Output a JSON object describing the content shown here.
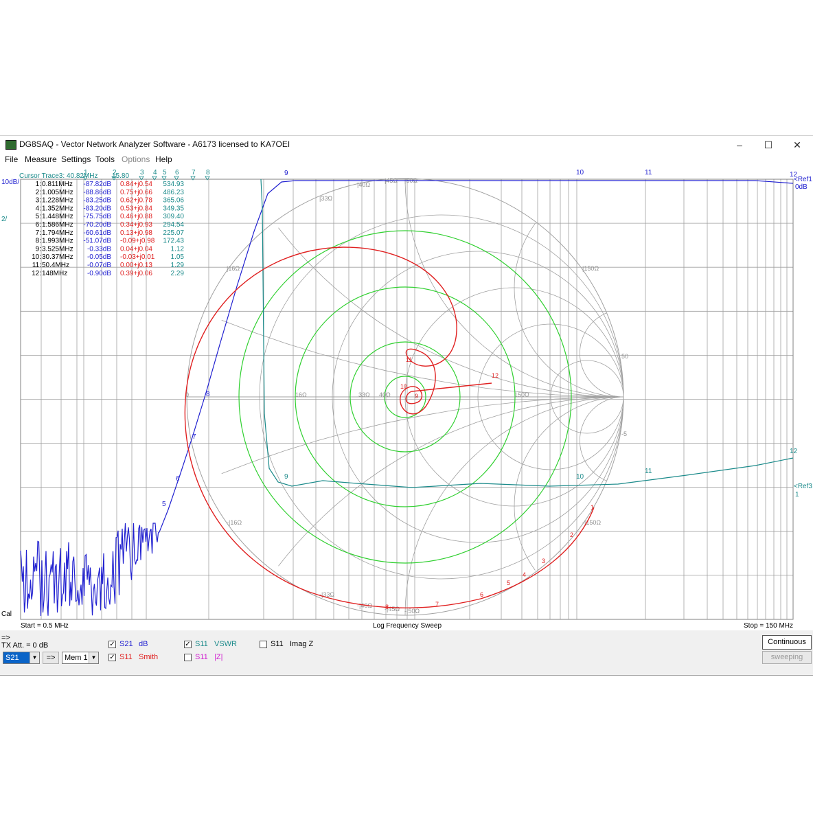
{
  "window": {
    "title": "DG8SAQ  -  Vector Network Analyzer Software  -  A6173 licensed to KA7OEI",
    "minimize": "–",
    "maximize": "☐",
    "close": "✕"
  },
  "menu": [
    {
      "label": "File",
      "disabled": false
    },
    {
      "label": "Measure",
      "disabled": false
    },
    {
      "label": "Settings",
      "disabled": false
    },
    {
      "label": "Tools",
      "disabled": false
    },
    {
      "label": "Options",
      "disabled": true
    },
    {
      "label": "Help",
      "disabled": false
    }
  ],
  "plot": {
    "left_scale_top": "10dB/",
    "left_scale_second": "2/",
    "left_bottom": "Cal",
    "cursor_header": "Cursor Trace3:  40.82MHz",
    "cursor_header_value": "15.80",
    "ref1_label": "<Ref1",
    "ref1_value": "0dB",
    "ref3_label": "<Ref3",
    "ref3_value": "1",
    "start": "Start = 0.5 MHz",
    "sweep_mode": "Log Frequency Sweep",
    "stop": "Stop = 150 MHz",
    "marker_numbers_top": [
      "1",
      "2",
      "3",
      "4",
      "5",
      "6",
      "7",
      "8"
    ],
    "markers": [
      {
        "n": "1:",
        "freq": "0.811MHz",
        "s21": "-87.82dB",
        "s11": "0.84+j0.54",
        "vswr": "534.93"
      },
      {
        "n": "2:",
        "freq": "1.005MHz",
        "s21": "-88.86dB",
        "s11": "0.75+j0.66",
        "vswr": "486.23"
      },
      {
        "n": "3:",
        "freq": "1.228MHz",
        "s21": "-83.25dB",
        "s11": "0.62+j0.78",
        "vswr": "365.06"
      },
      {
        "n": "4:",
        "freq": "1.352MHz",
        "s21": "-83.20dB",
        "s11": "0.53+j0.84",
        "vswr": "349.35"
      },
      {
        "n": "5:",
        "freq": "1.448MHz",
        "s21": "-75.75dB",
        "s11": "0.46+j0.88",
        "vswr": "309.40"
      },
      {
        "n": "6:",
        "freq": "1.586MHz",
        "s21": "-70.20dB",
        "s11": "0.34+j0.93",
        "vswr": "294.54"
      },
      {
        "n": "7:",
        "freq": "1.794MHz",
        "s21": "-60.61dB",
        "s11": "0.13+j0.98",
        "vswr": "225.07"
      },
      {
        "n": "8:",
        "freq": "1.993MHz",
        "s21": "-51.07dB",
        "s11": "-0.09+j0.98",
        "vswr": "172.43"
      },
      {
        "n": "9:",
        "freq": "3.525MHz",
        "s21": "-0.33dB",
        "s11": "0.04+j0.04",
        "vswr": "1.12"
      },
      {
        "n": "10:",
        "freq": "30.37MHz",
        "s21": "-0.05dB",
        "s11": "-0.03+j0.01",
        "vswr": "1.05"
      },
      {
        "n": "11:",
        "freq": "50.4MHz",
        "s21": "-0.07dB",
        "s11": "0.00+j0.13",
        "vswr": "1.29"
      },
      {
        "n": "12:",
        "freq": "148MHz",
        "s21": "-0.90dB",
        "s11": "0.39+j0.06",
        "vswr": "2.29"
      }
    ],
    "smith_labels": [
      "|40Ω",
      "|45Ω",
      "|50Ω",
      "|33Ω",
      "|16Ω",
      "|150Ω",
      "0",
      "16Ω",
      "33Ω",
      "40Ω",
      "150Ω",
      "50",
      "-5",
      "-|16Ω",
      "-|150Ω",
      "-|33Ω",
      "-|40Ω",
      "-|45Ω",
      "-|50Ω"
    ],
    "colors": {
      "s21": "#2020d0",
      "s11_smith": "#e02020",
      "s11_vswr": "#1a8a8a",
      "grid": "#a0a0a0",
      "vswr_circles": "#30d030"
    }
  },
  "controls": {
    "arrow_label": "=>",
    "tx_att": "TX Att.  = 0 dB",
    "trace_select": "S21",
    "arrow_button": "=>",
    "mem_select": "Mem 1",
    "traces": [
      {
        "checked": true,
        "param": "S21",
        "format": "dB",
        "color": "#2020d0"
      },
      {
        "checked": true,
        "param": "S11",
        "format": "Smith",
        "color": "#e02020"
      },
      {
        "checked": true,
        "param": "S11",
        "format": "VSWR",
        "color": "#1a8a8a"
      },
      {
        "checked": false,
        "param": "S11",
        "format": "|Z|",
        "color": "#d020d0"
      },
      {
        "checked": false,
        "param": "S11",
        "format": "Imag Z",
        "color": "#000000"
      }
    ],
    "continuous_button": "Continuous",
    "sweeping_button": "sweeping"
  }
}
